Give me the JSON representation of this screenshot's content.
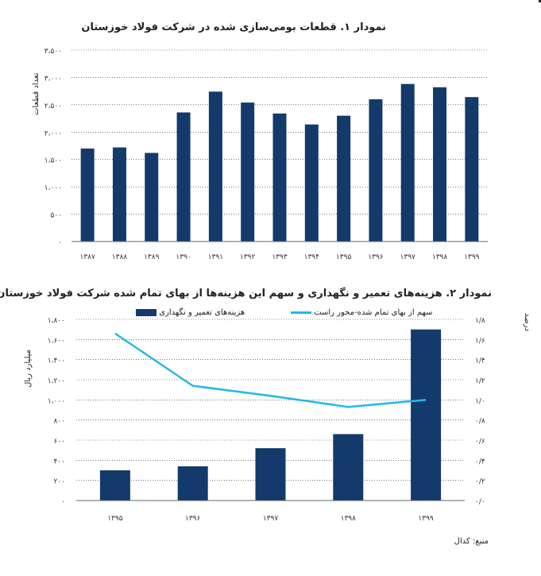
{
  "chart_data": [
    {
      "type": "bar",
      "title": "نمودار ۱. قطعات بومی‌سازی شده در شرکت فولاد خوزستان",
      "ylabel": "تعداد قطعات",
      "categories": [
        "۱۳۸۷",
        "۱۳۸۸",
        "۱۳۸۹",
        "۱۳۹۰",
        "۱۳۹۱",
        "۱۳۹۲",
        "۱۳۹۳",
        "۱۳۹۴",
        "۱۳۹۵",
        "۱۳۹۶",
        "۱۳۹۷",
        "۱۳۹۸",
        "۱۳۹۹"
      ],
      "values": [
        1700,
        1720,
        1620,
        2360,
        2740,
        2540,
        2340,
        2140,
        2300,
        2600,
        2880,
        2820,
        2640
      ],
      "yticks": [
        0,
        500,
        1000,
        1500,
        2000,
        2500,
        3000,
        3500
      ],
      "ytick_labels": [
        "۰",
        "۵۰۰",
        "۱،۰۰۰",
        "۱،۵۰۰",
        "۲،۰۰۰",
        "۲،۵۰۰",
        "۳،۰۰۰",
        "۳،۵۰۰"
      ],
      "ylim": [
        0,
        3500
      ],
      "grid": true,
      "color": "#143a6b"
    },
    {
      "type": "bar+line",
      "title": "نمودار ۲. هزینه‌های تعمیر و نگهداری و سهم این هزینه‌ها از بهای تمام شده شرکت فولاد خوزستان",
      "categories": [
        "۱۳۹۵",
        "۱۳۹۶",
        "۱۳۹۷",
        "۱۳۹۸",
        "۱۳۹۹"
      ],
      "series": [
        {
          "name": "هزینه‌های تعمیر و نگهداری",
          "type": "bar",
          "axis": "left",
          "values": [
            300,
            340,
            520,
            660,
            1700
          ],
          "color": "#143a6b"
        },
        {
          "name": "سهم از بهای تمام شده-محور راست",
          "type": "line",
          "axis": "right",
          "values": [
            1.66,
            1.14,
            1.04,
            0.93,
            1.0
          ],
          "color": "#26b7e6"
        }
      ],
      "ylabel_left": "میلیارد ریال",
      "ylabel_right": "درصد",
      "ylim_left": [
        0,
        1800
      ],
      "ylim_right": [
        0,
        1.8
      ],
      "yticks_left": [
        0,
        200,
        400,
        600,
        800,
        1000,
        1200,
        1400,
        1600,
        1800
      ],
      "ytick_labels_left": [
        "۰",
        "۲۰۰",
        "۴۰۰",
        "۶۰۰",
        "۸۰۰",
        "۱،۰۰۰",
        "۱،۲۰۰",
        "۱،۴۰۰",
        "۱،۶۰۰",
        "۱،۸۰۰"
      ],
      "yticks_right": [
        0,
        0.2,
        0.4,
        0.6,
        0.8,
        1.0,
        1.2,
        1.4,
        1.6,
        1.8
      ],
      "ytick_labels_right": [
        "۰/۰",
        "۰/۲",
        "۰/۴",
        "۰/۶",
        "۰/۸",
        "۱/۰",
        "۱/۲",
        "۱/۴",
        "۱/۶",
        "۱/۸"
      ],
      "grid": true,
      "legend": "top"
    }
  ],
  "source": "منبع: کدال"
}
